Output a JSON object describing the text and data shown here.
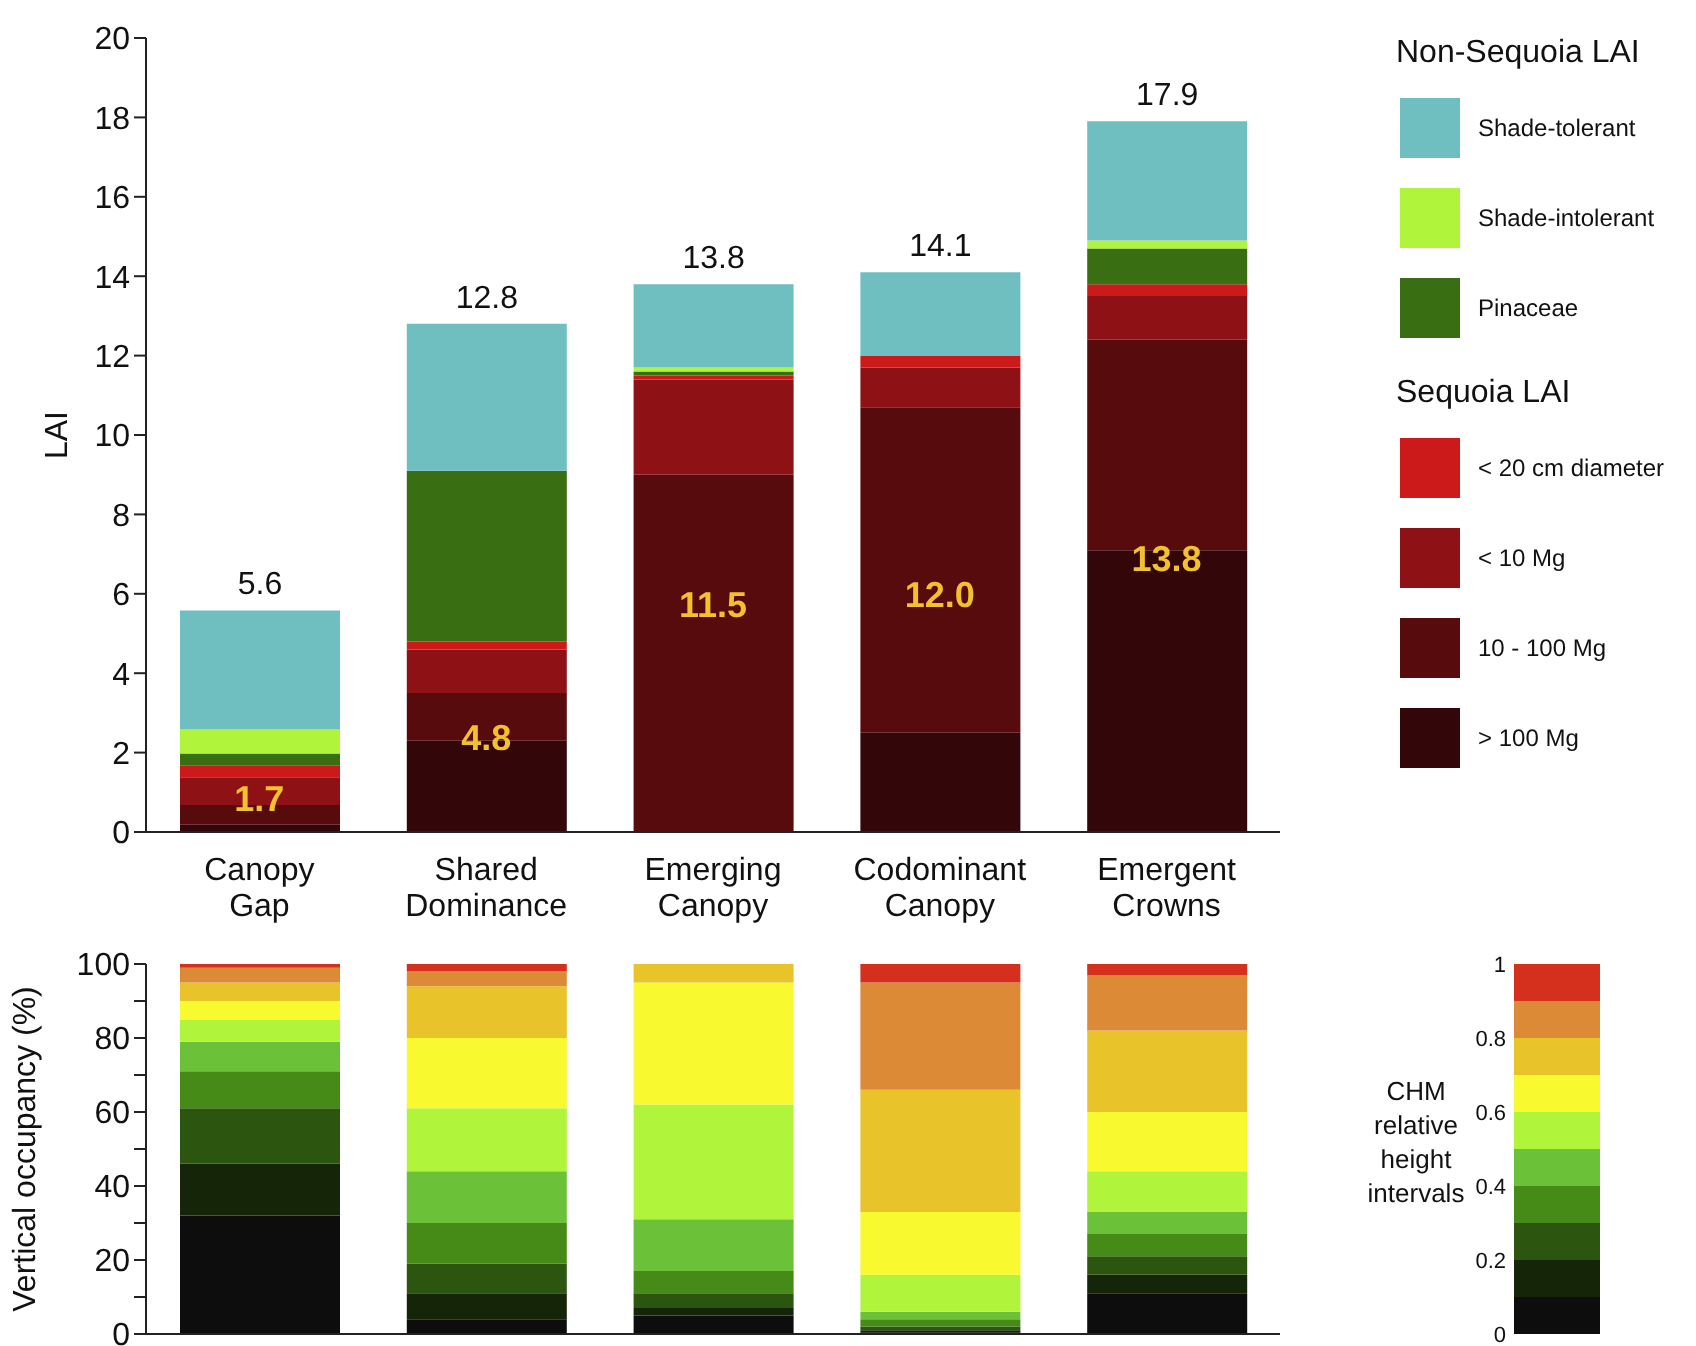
{
  "chart_data": [
    {
      "type": "bar",
      "stacked": true,
      "ylabel": "LAI",
      "categories": [
        "Canopy Gap",
        "Shared Dominance",
        "Emerging Canopy",
        "Codominant Canopy",
        "Emergent Crowns"
      ],
      "series": [
        {
          "name": "> 100 Mg",
          "color": "#33060a",
          "values": [
            0.18,
            2.3,
            0,
            2.5,
            7.1
          ]
        },
        {
          "name": "10 - 100 Mg",
          "color": "#580b0d",
          "values": [
            0.5,
            1.2,
            9.0,
            8.2,
            5.3
          ]
        },
        {
          "name": "< 10 Mg",
          "color": "#8e1116",
          "values": [
            0.7,
            1.1,
            2.4,
            1.0,
            1.1
          ]
        },
        {
          "name": "< 20 cm diameter",
          "color": "#cc1a1a",
          "values": [
            0.3,
            0.2,
            0.1,
            0.3,
            0.3
          ]
        },
        {
          "name": "Pinaceae",
          "color": "#3a6e12",
          "values": [
            0.3,
            4.3,
            0.1,
            0,
            0.9
          ]
        },
        {
          "name": "Shade-intolerant",
          "color": "#b0f53c",
          "values": [
            0.6,
            0,
            0.1,
            0,
            0.2
          ]
        },
        {
          "name": "Shade-tolerant",
          "color": "#6fbfc0",
          "values": [
            3.0,
            3.7,
            2.1,
            2.1,
            3.0
          ]
        }
      ],
      "legend_title": [
        "Non-Sequoia LAI",
        "Sequoia LAI"
      ],
      "legend": "right",
      "totals": [
        "5.6",
        "12.8",
        "13.8",
        "14.1",
        "17.9"
      ],
      "annotations": [
        "1.7",
        "4.8",
        "11.5",
        "12.0",
        "13.8"
      ],
      "ylim": [
        0,
        20
      ],
      "yticks": [
        0,
        2,
        4,
        6,
        8,
        10,
        12,
        14,
        16,
        18,
        20
      ]
    },
    {
      "type": "bar",
      "stacked": true,
      "ylabel": "Vertical occupancy (%)",
      "categories": [
        null,
        null,
        null,
        null,
        null
      ],
      "series": [
        {
          "color": "#0d0d0d",
          "values": [
            32,
            4,
            5,
            0.5,
            11
          ]
        },
        {
          "color": "#142508",
          "values": [
            14,
            7,
            2,
            0.5,
            5
          ]
        },
        {
          "color": "#2c5510",
          "values": [
            15,
            8,
            4,
            1,
            5
          ]
        },
        {
          "color": "#468a18",
          "values": [
            10,
            11,
            6,
            2,
            6
          ]
        },
        {
          "color": "#6bc238",
          "values": [
            8,
            14,
            14,
            2,
            6
          ]
        },
        {
          "color": "#b0f53c",
          "values": [
            6,
            17,
            31,
            10,
            11
          ]
        },
        {
          "color": "#f8fa2f",
          "values": [
            5,
            19,
            33,
            17,
            16
          ]
        },
        {
          "color": "#e8c42a",
          "values": [
            5,
            14,
            5,
            33,
            22
          ]
        },
        {
          "color": "#dc8a36",
          "values": [
            4,
            4,
            0,
            29,
            15
          ]
        },
        {
          "color": "#d5301e",
          "values": [
            1,
            2,
            0,
            5,
            3
          ]
        }
      ],
      "clabel": "CHM relative height intervals",
      "clim": [
        0,
        1
      ],
      "cticks": [
        0,
        0.2,
        0.4,
        0.6,
        0.8,
        1.0
      ],
      "ylim": [
        0,
        100
      ],
      "yticks": [
        0,
        {
          "value": 10,
          "label": null
        },
        20,
        {
          "value": 30,
          "label": null
        },
        40,
        {
          "value": 50,
          "label": null
        },
        60,
        {
          "value": 70,
          "label": null
        },
        80,
        {
          "value": 90,
          "label": null
        },
        100
      ]
    }
  ]
}
